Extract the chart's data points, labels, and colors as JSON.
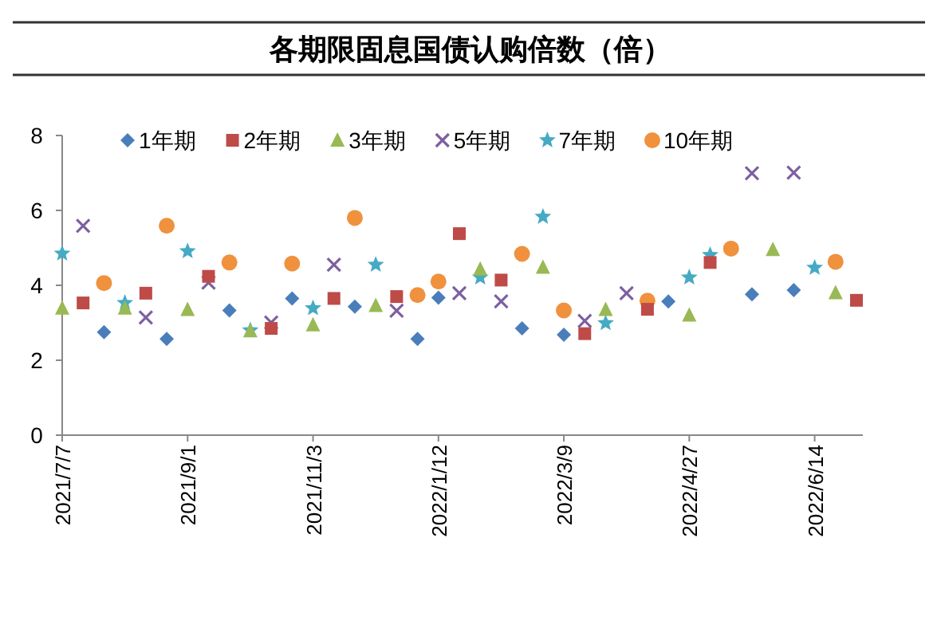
{
  "chart_data": {
    "type": "scatter",
    "title": "各期限固息国债认购倍数（倍）",
    "categories": [
      "2021/7/7",
      null,
      null,
      null,
      null,
      null,
      "2021/9/1",
      null,
      null,
      null,
      null,
      null,
      "2021/11/3",
      null,
      null,
      null,
      null,
      null,
      "2022/1/12",
      null,
      null,
      null,
      null,
      null,
      "2022/3/9",
      null,
      null,
      null,
      null,
      null,
      "2022/4/27",
      null,
      null,
      null,
      null,
      null,
      "2022/6/14",
      null,
      null
    ],
    "ylim": [
      0,
      8
    ],
    "yticks": [
      0,
      2,
      4,
      6,
      8
    ],
    "grid": false,
    "legend": "top",
    "series": [
      {
        "name": "1年期",
        "color": "#4a7ebb",
        "marker": "diamond",
        "values": [
          null,
          null,
          2.75,
          null,
          null,
          2.57,
          null,
          null,
          3.33,
          null,
          null,
          3.65,
          null,
          null,
          3.43,
          null,
          null,
          2.57,
          3.67,
          null,
          null,
          null,
          2.85,
          null,
          2.68,
          null,
          null,
          null,
          null,
          3.57,
          null,
          null,
          null,
          3.76,
          null,
          3.87,
          null,
          null,
          null
        ]
      },
      {
        "name": "2年期",
        "color": "#be4b48",
        "marker": "square",
        "values": [
          null,
          3.53,
          null,
          null,
          3.79,
          null,
          null,
          4.24,
          null,
          null,
          2.85,
          null,
          null,
          3.65,
          null,
          null,
          3.7,
          null,
          null,
          5.38,
          null,
          4.14,
          null,
          null,
          null,
          2.71,
          null,
          null,
          3.36,
          null,
          null,
          4.61,
          null,
          null,
          null,
          null,
          null,
          null,
          3.6
        ]
      },
      {
        "name": "3年期",
        "color": "#98b954",
        "marker": "triangle",
        "values": [
          3.39,
          null,
          null,
          3.39,
          null,
          null,
          3.35,
          null,
          null,
          2.78,
          null,
          null,
          2.94,
          null,
          null,
          3.46,
          null,
          null,
          null,
          null,
          4.43,
          null,
          null,
          4.48,
          null,
          null,
          3.35,
          null,
          null,
          null,
          3.2,
          null,
          null,
          null,
          4.95,
          null,
          null,
          3.8,
          null
        ]
      },
      {
        "name": "5年期",
        "color": "#7d60a0",
        "marker": "cross",
        "values": [
          null,
          5.59,
          null,
          null,
          3.14,
          null,
          null,
          4.07,
          null,
          null,
          3.01,
          null,
          null,
          4.55,
          null,
          null,
          3.32,
          null,
          null,
          3.79,
          null,
          3.57,
          null,
          null,
          null,
          3.05,
          null,
          3.79,
          null,
          null,
          null,
          null,
          null,
          6.99,
          null,
          7.01,
          null,
          null,
          null
        ]
      },
      {
        "name": "7年期",
        "color": "#46aac5",
        "marker": "star",
        "values": [
          4.85,
          null,
          null,
          3.53,
          null,
          null,
          4.91,
          null,
          null,
          2.8,
          null,
          null,
          3.39,
          null,
          null,
          4.55,
          null,
          null,
          null,
          null,
          4.21,
          null,
          null,
          5.83,
          null,
          null,
          2.99,
          null,
          null,
          null,
          4.21,
          4.81,
          null,
          null,
          null,
          null,
          4.47,
          null,
          null
        ]
      },
      {
        "name": "10年期",
        "color": "#f0913e",
        "marker": "circle",
        "values": [
          null,
          null,
          4.06,
          null,
          null,
          5.59,
          null,
          null,
          4.61,
          null,
          null,
          4.58,
          null,
          null,
          5.8,
          null,
          null,
          3.74,
          4.1,
          null,
          null,
          null,
          4.84,
          null,
          3.33,
          null,
          null,
          null,
          3.59,
          null,
          null,
          null,
          4.98,
          null,
          null,
          null,
          null,
          4.63,
          null
        ]
      }
    ]
  }
}
